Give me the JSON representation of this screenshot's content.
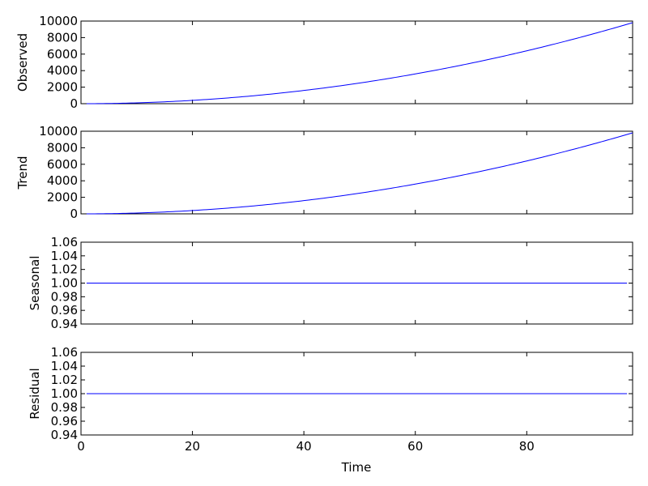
{
  "chart_data": {
    "type": "line",
    "xlabel": "Time",
    "xlim": [
      0,
      99
    ],
    "xticks": [
      0,
      20,
      40,
      60,
      80
    ],
    "color": "#0000ff",
    "subplots": [
      {
        "name": "observed",
        "ylabel": "Observed",
        "ylim": [
          0,
          10000
        ],
        "yticks": [
          0,
          2000,
          4000,
          6000,
          8000,
          10000
        ],
        "series": {
          "function": "x^2",
          "x_start": 1,
          "x_end": 99,
          "values_at": {
            "1": 1,
            "20": 400,
            "40": 1600,
            "60": 3600,
            "80": 6400,
            "99": 9801
          }
        }
      },
      {
        "name": "trend",
        "ylabel": "Trend",
        "ylim": [
          0,
          10000
        ],
        "yticks": [
          0,
          2000,
          4000,
          6000,
          8000,
          10000
        ],
        "series": {
          "function": "x^2",
          "x_start": 1,
          "x_end": 99,
          "values_at": {
            "1": 1,
            "20": 400,
            "40": 1600,
            "60": 3600,
            "80": 6400,
            "99": 9801
          }
        }
      },
      {
        "name": "seasonal",
        "ylabel": "Seasonal",
        "ylim": [
          0.94,
          1.06
        ],
        "yticks": [
          "0.94",
          "0.96",
          "0.98",
          "1.00",
          "1.02",
          "1.04",
          "1.06"
        ],
        "series": {
          "function": "constant",
          "value": 1.0,
          "x_start": 1,
          "x_end": 98
        }
      },
      {
        "name": "residual",
        "ylabel": "Residual",
        "ylim": [
          0.94,
          1.06
        ],
        "yticks": [
          "0.94",
          "0.96",
          "0.98",
          "1.00",
          "1.02",
          "1.04",
          "1.06"
        ],
        "series": {
          "function": "constant",
          "value": 1.0,
          "x_start": 1,
          "x_end": 98
        }
      }
    ]
  }
}
